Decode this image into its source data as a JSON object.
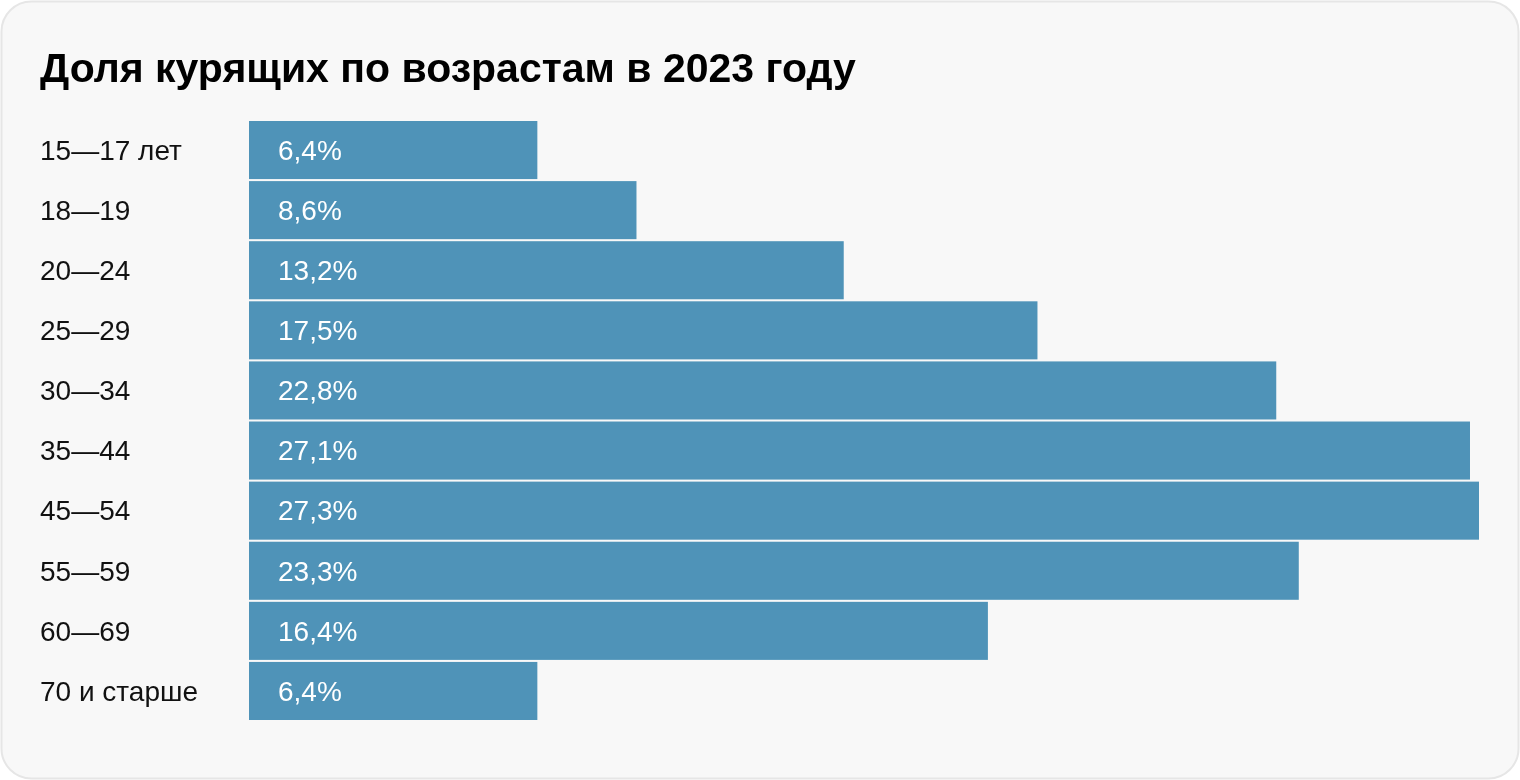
{
  "chart_data": {
    "type": "bar",
    "orientation": "horizontal",
    "title": "Доля курящих по возрастам в 2023 году",
    "categories": [
      "15—17 лет",
      "18—19",
      "20—24",
      "25—29",
      "30—34",
      "35—44",
      "45—54",
      "55—59",
      "60—69",
      "70 и старше"
    ],
    "values": [
      6.4,
      8.6,
      13.2,
      17.5,
      22.8,
      27.1,
      27.3,
      23.3,
      16.4,
      6.4
    ],
    "value_labels": [
      "6,4%",
      "8,6%",
      "13,2%",
      "17,5%",
      "22,8%",
      "27,1%",
      "27,3%",
      "23,3%",
      "16,4%",
      "6,4%"
    ],
    "color": "#4f93b8"
  }
}
